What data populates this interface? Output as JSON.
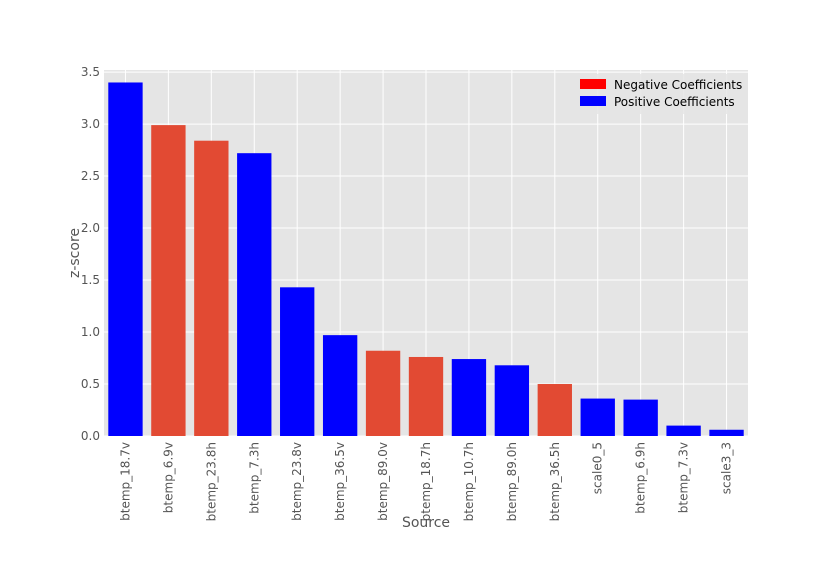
{
  "chart_data": {
    "type": "bar",
    "title": "",
    "xlabel": "Source",
    "ylabel": "z-score",
    "ylim": [
      0,
      3.52
    ],
    "yticks": [
      0.0,
      0.5,
      1.0,
      1.5,
      2.0,
      2.5,
      3.0,
      3.5
    ],
    "ytick_labels": [
      "0.0",
      "0.5",
      "1.0",
      "1.5",
      "2.0",
      "2.5",
      "3.0",
      "3.5"
    ],
    "grid": true,
    "legend_position": "top-right",
    "legend": [
      {
        "label": "Negative Coefficients",
        "color": "#ff0000"
      },
      {
        "label": "Positive Coefficients",
        "color": "#0000ff"
      }
    ],
    "colors": {
      "negative_bar": "#e24a33",
      "positive_bar": "#0000ff",
      "plot_background": "#e5e5e5",
      "grid": "#ffffff"
    },
    "categories": [
      "btemp_18.7v",
      "btemp_6.9v",
      "btemp_23.8h",
      "btemp_7.3h",
      "btemp_23.8v",
      "btemp_36.5v",
      "btemp_89.0v",
      "btemp_18.7h",
      "btemp_10.7h",
      "btemp_89.0h",
      "btemp_36.5h",
      "scale0_5",
      "btemp_6.9h",
      "btemp_7.3v",
      "scale3_3"
    ],
    "values": [
      3.4,
      2.99,
      2.84,
      2.72,
      1.43,
      0.97,
      0.82,
      0.76,
      0.74,
      0.68,
      0.5,
      0.36,
      0.35,
      0.1,
      0.06
    ],
    "signs": [
      "positive",
      "negative",
      "negative",
      "positive",
      "positive",
      "positive",
      "negative",
      "negative",
      "positive",
      "positive",
      "negative",
      "positive",
      "positive",
      "positive",
      "positive"
    ]
  }
}
